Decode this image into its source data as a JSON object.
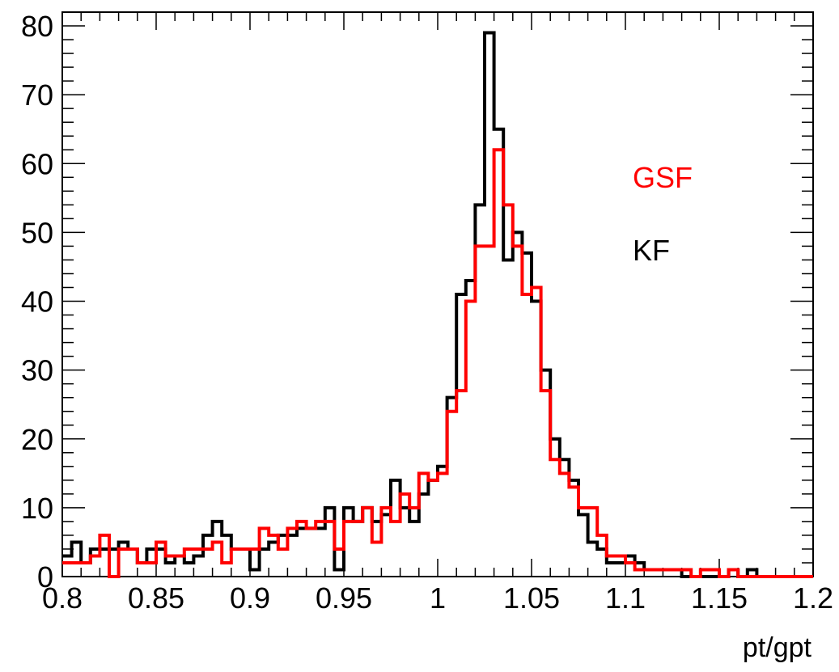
{
  "chart_data": {
    "type": "histogram",
    "title": "",
    "xlabel": "pt/gpt",
    "ylabel": "",
    "xlim": [
      0.8,
      1.2
    ],
    "ylim": [
      0,
      82
    ],
    "bin_width": 0.005,
    "x_ticks": [
      "0.8",
      "0.85",
      "0.9",
      "0.95",
      "1",
      "1.05",
      "1.1",
      "1.15",
      "1.2"
    ],
    "x_tick_values": [
      0.8,
      0.85,
      0.9,
      0.95,
      1.0,
      1.05,
      1.1,
      1.15,
      1.2
    ],
    "y_ticks": [
      "0",
      "10",
      "20",
      "30",
      "40",
      "50",
      "60",
      "70",
      "80"
    ],
    "y_tick_values": [
      0,
      10,
      20,
      30,
      40,
      50,
      60,
      70,
      80
    ],
    "grid": false,
    "legend_placement": "right",
    "series": [
      {
        "name": "KF",
        "color": "#000000",
        "values": [
          3,
          5,
          2,
          4,
          4,
          4,
          5,
          4,
          2,
          4,
          4,
          2,
          3,
          2,
          3,
          6,
          8,
          6,
          4,
          4,
          1,
          4,
          5,
          6,
          6,
          7,
          7,
          7,
          10,
          1,
          10,
          8,
          10,
          8,
          9,
          14,
          10,
          8,
          12,
          14,
          16,
          26,
          41,
          43,
          54,
          79,
          65,
          46,
          50,
          47,
          40,
          30,
          20,
          17,
          14,
          9,
          5,
          4,
          2,
          2,
          3,
          2,
          1,
          1,
          1,
          1,
          0,
          0,
          0,
          0,
          0,
          1,
          0,
          1,
          0,
          0,
          0,
          0,
          0,
          0
        ]
      },
      {
        "name": "GSF",
        "color": "#ff0000",
        "values": [
          2,
          2,
          2,
          3,
          6,
          0,
          4,
          4,
          2,
          2,
          5,
          3,
          3,
          4,
          4,
          4,
          5,
          2,
          4,
          4,
          4,
          7,
          6,
          4,
          7,
          8,
          7,
          8,
          8,
          4,
          8,
          8,
          10,
          5,
          10,
          8,
          12,
          10,
          15,
          14,
          15,
          24,
          27,
          40,
          48,
          48,
          62,
          54,
          48,
          41,
          42,
          27,
          17,
          15,
          13,
          10,
          10,
          6,
          3,
          3,
          2,
          1,
          1,
          1,
          1,
          1,
          1,
          0,
          1,
          1,
          0,
          1,
          0,
          0,
          0,
          0,
          0,
          0,
          0,
          0
        ]
      }
    ]
  }
}
